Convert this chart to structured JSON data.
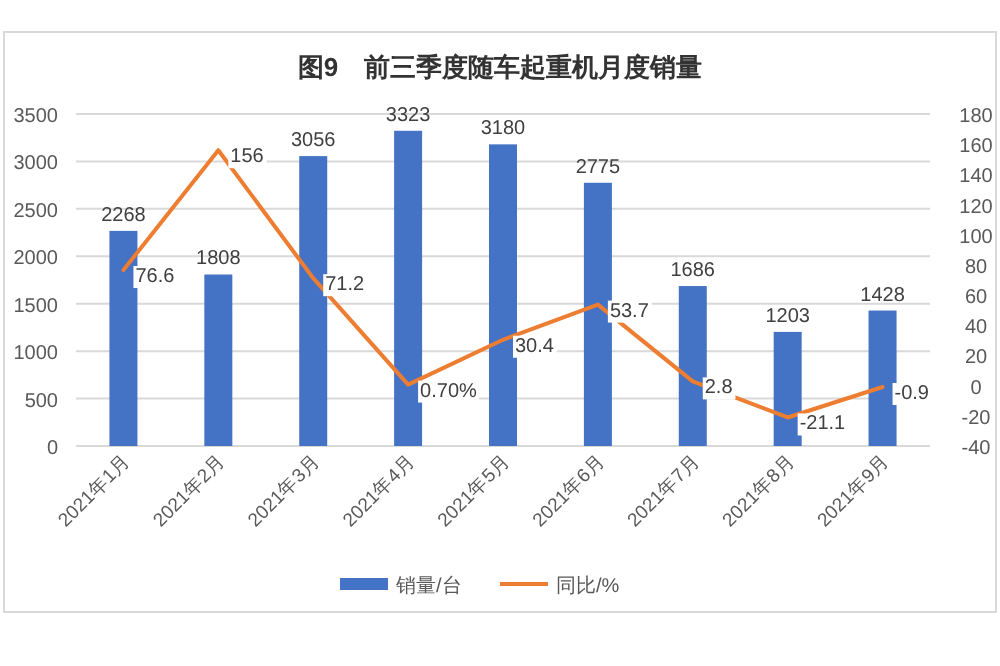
{
  "chart_data": {
    "type": "bar",
    "title": "图9　前三季度随车起重机月度销量",
    "categories": [
      "2021年1月",
      "2021年2月",
      "2021年3月",
      "2021年4月",
      "2021年5月",
      "2021年6月",
      "2021年7月",
      "2021年8月",
      "2021年9月"
    ],
    "series": [
      {
        "name": "销量/台",
        "color": "#4472c4",
        "values": [
          2268,
          1808,
          3056,
          3323,
          3180,
          2775,
          1686,
          1203,
          1428
        ],
        "value_labels": [
          "2268",
          "1808",
          "3056",
          "3323",
          "3180",
          "2775",
          "1686",
          "1203",
          "1428"
        ]
      },
      {
        "name": "同比/%",
        "type": "line",
        "axis": "y2",
        "color": "#ed7d31",
        "values": [
          76.6,
          156,
          71.2,
          0.7,
          30.4,
          53.7,
          2.8,
          -21.1,
          -0.9
        ],
        "value_labels": [
          "76.6",
          "156",
          "71.2",
          "0.70%",
          "30.4",
          "53.7",
          "2.8",
          "-21.1",
          "-0.9"
        ]
      }
    ],
    "ylim": [
      0,
      3500
    ],
    "yticks": [
      0,
      500,
      1000,
      1500,
      2000,
      2500,
      3000,
      3500
    ],
    "y2lim": [
      -40,
      180
    ],
    "y2ticks": [
      -40,
      -20,
      0,
      20,
      40,
      60,
      80,
      100,
      120,
      140,
      160,
      180
    ],
    "grid": "y",
    "legend": "bottom",
    "marker": "none",
    "line_style": "solid"
  }
}
